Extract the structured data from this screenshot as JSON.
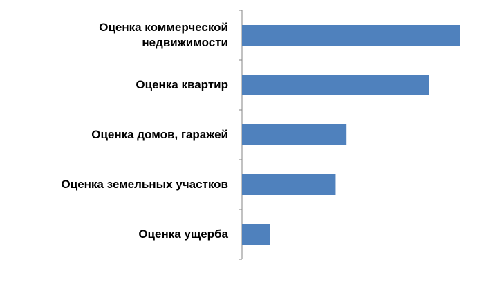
{
  "chart_data": {
    "type": "bar",
    "orientation": "horizontal",
    "categories": [
      "Оценка коммерческой\nнедвижимости",
      "Оценка квартир",
      "Оценка домов, гаражей",
      "Оценка земельных участков",
      "Оценка ущерба"
    ],
    "values": [
      100,
      86,
      48,
      43,
      13
    ],
    "color": "#4f81bd",
    "xlim": [
      0,
      100
    ]
  }
}
